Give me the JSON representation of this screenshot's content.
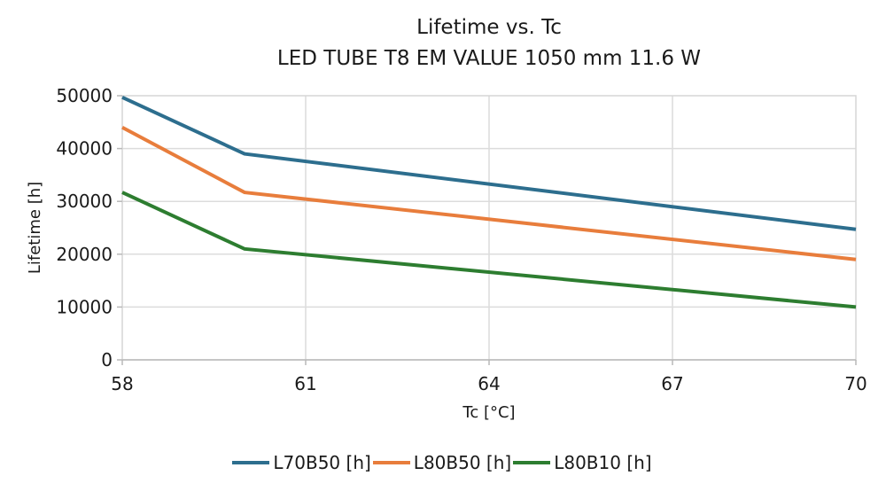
{
  "chart_data": {
    "type": "line",
    "title": "Lifetime vs. Tc",
    "subtitle": "LED TUBE T8 EM VALUE 1050 mm 11.6 W",
    "xlabel": "Tc [°C]",
    "ylabel": "Lifetime [h]",
    "xlim": [
      58,
      70
    ],
    "ylim": [
      0,
      50000
    ],
    "xticks": [
      58,
      61,
      64,
      67,
      70
    ],
    "yticks": [
      0,
      10000,
      20000,
      30000,
      40000,
      50000
    ],
    "grid": true,
    "legend_position": "bottom-center",
    "x": [
      58,
      60,
      70
    ],
    "series": [
      {
        "name": "L70B50 [h]",
        "color": "#2d6e8e",
        "values": [
          49700,
          39000,
          24700
        ]
      },
      {
        "name": "L80B50 [h]",
        "color": "#e87d3c",
        "values": [
          44000,
          31700,
          19000
        ]
      },
      {
        "name": "L80B10 [h]",
        "color": "#2d7d30",
        "values": [
          31700,
          21000,
          10000
        ]
      }
    ],
    "colors": {
      "text": "#1a1a1a",
      "gridline": "#dcdcdc",
      "axis": "#b9b9b9",
      "frame": "#d6d6d6",
      "background": "#ffffff"
    }
  }
}
